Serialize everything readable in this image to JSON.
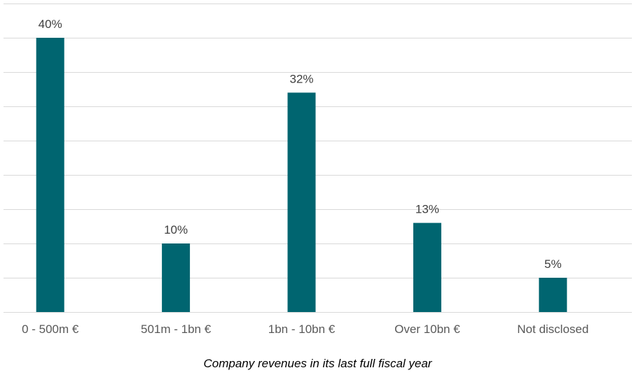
{
  "chart_data": {
    "type": "bar",
    "categories": [
      "0 - 500m €",
      "501m - 1bn €",
      "1bn - 10bn €",
      "Over 10bn €",
      "Not disclosed"
    ],
    "values": [
      40,
      10,
      32,
      13,
      5
    ],
    "data_labels": [
      "40%",
      "10%",
      "32%",
      "13%",
      "5%"
    ],
    "title": "",
    "xlabel": "Company revenues in its last full fiscal year",
    "ylabel": "",
    "ylim": [
      0,
      45
    ],
    "grid": true,
    "gridline_step": 5,
    "legend": "none",
    "bar_color": "#006570"
  }
}
